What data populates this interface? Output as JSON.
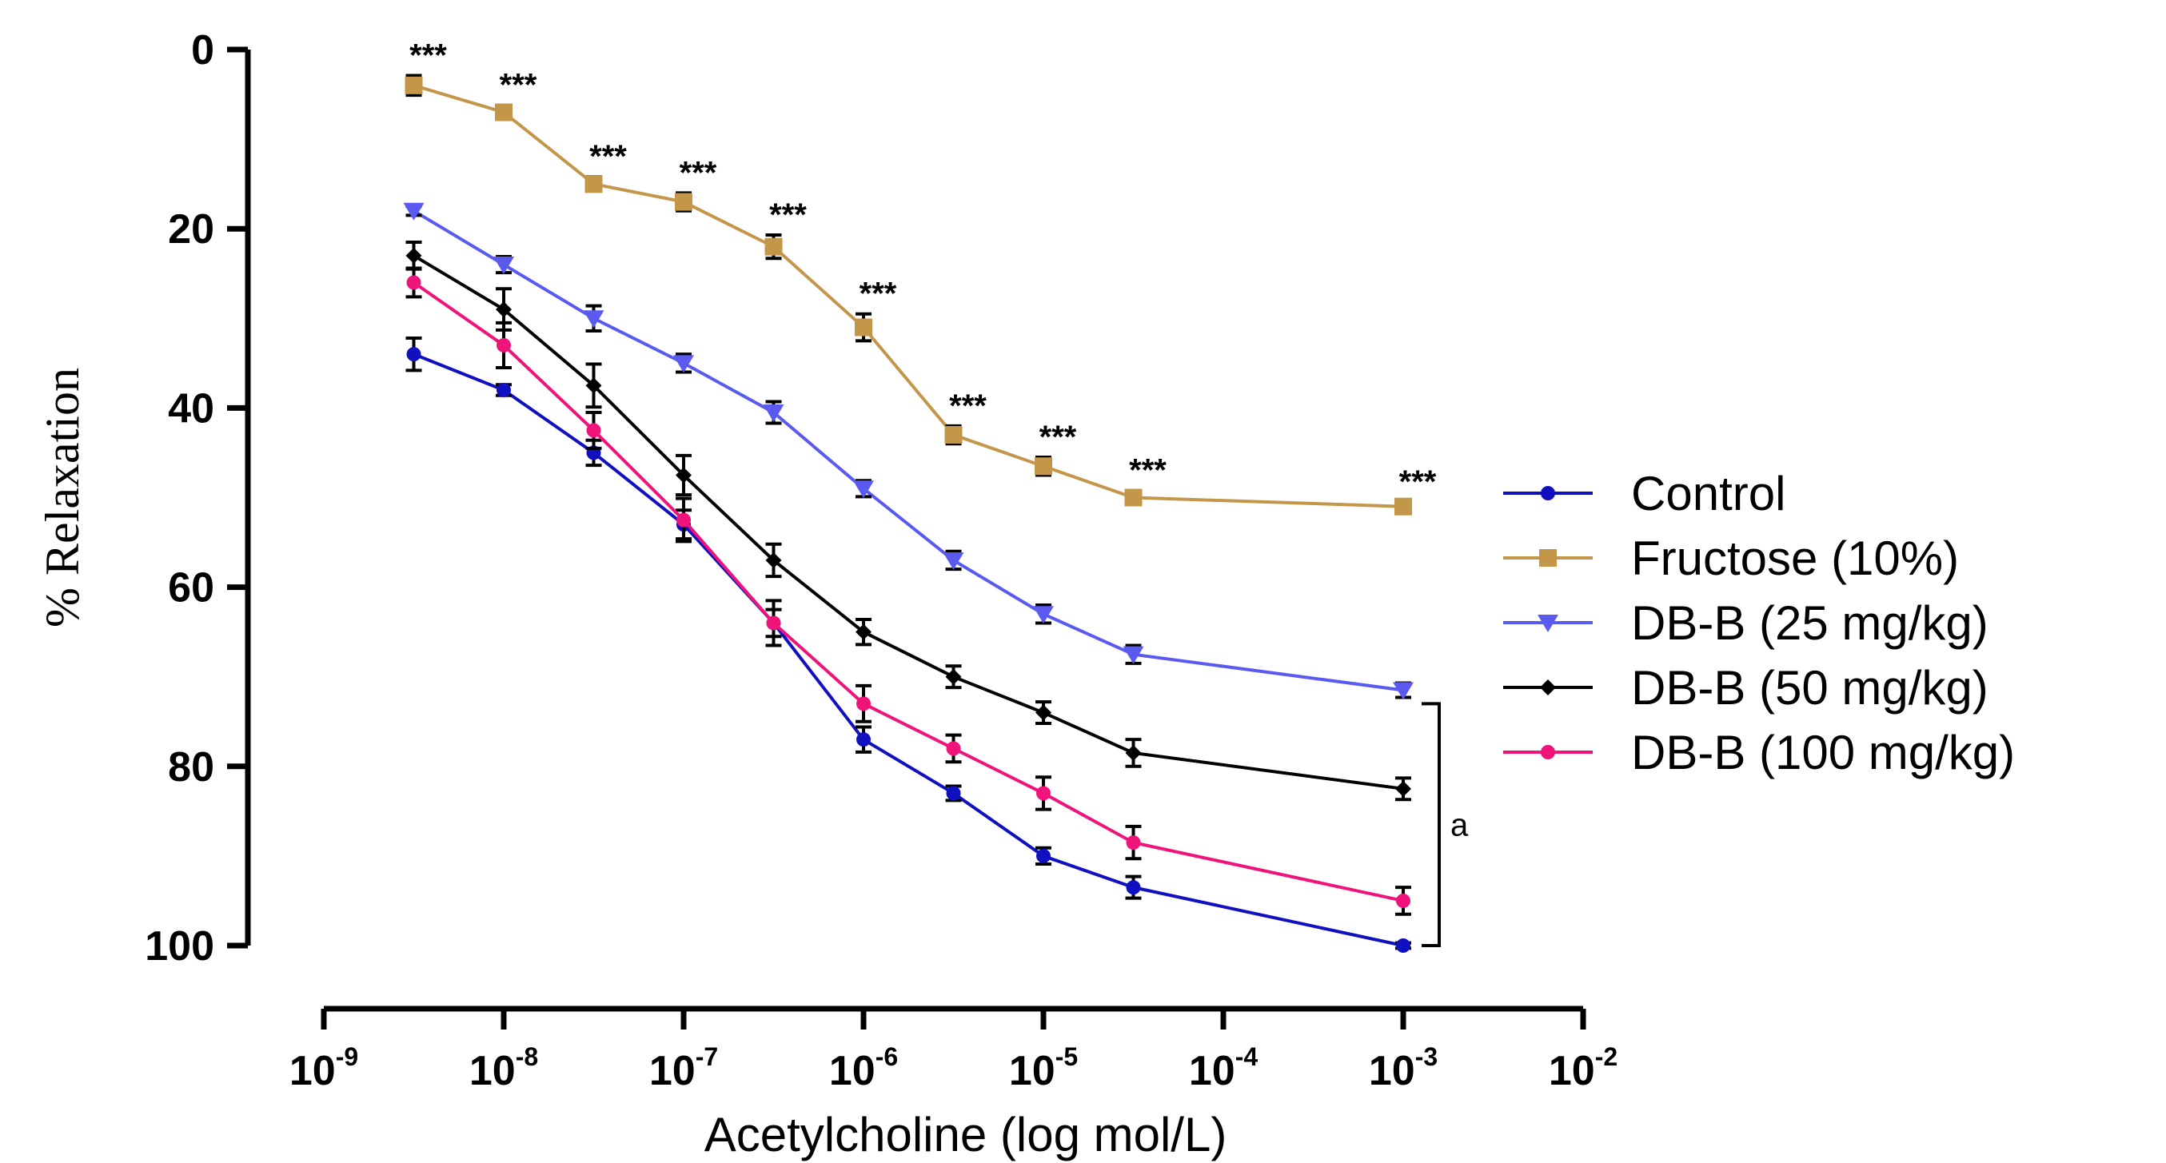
{
  "chart_data": {
    "type": "line",
    "title": "",
    "xlabel": "Acetylcholine (log mol/L)",
    "ylabel": "% Relaxation",
    "x_scale": "log",
    "x_range_exponent": [
      -9,
      -2
    ],
    "y_range": [
      0,
      100
    ],
    "y_inverted": true,
    "grid": false,
    "legend_position": "right",
    "y_ticks": [
      0,
      20,
      40,
      60,
      80,
      100
    ],
    "y_tick_labels": [
      "0",
      "20",
      "40",
      "60",
      "80",
      "100"
    ],
    "x_tick_exponents": [
      -9,
      -8,
      -7,
      -6,
      -5,
      -4,
      -3,
      -2
    ],
    "x_tick_base": "10",
    "x_tick_exponent_labels": [
      "-9",
      "-8",
      "-7",
      "-6",
      "-5",
      "-4",
      "-3",
      "-2"
    ],
    "x_exponents": [
      -8.5,
      -8,
      -7.5,
      -7,
      -6.5,
      -6,
      -5.5,
      -5,
      -4.5,
      -3
    ],
    "series": [
      {
        "name": "Control",
        "color": "#1010c0",
        "marker": "circle",
        "values": [
          34,
          38,
          45,
          53,
          64,
          77,
          83,
          90,
          93.5,
          100
        ],
        "errors": [
          1.8,
          0.6,
          1.4,
          1.6,
          1.5,
          1.4,
          0.8,
          0.9,
          1.2,
          0.3
        ]
      },
      {
        "name": "Fructose (10%)",
        "color": "#c4964a",
        "marker": "square",
        "values": [
          4,
          7,
          15,
          17,
          22,
          31,
          43,
          46.5,
          50,
          51
        ],
        "errors": [
          1.1,
          0.8,
          0.8,
          1.0,
          1.3,
          1.5,
          1.0,
          1.0,
          0.8,
          0.5
        ]
      },
      {
        "name": "DB-B (25 mg/kg)",
        "color": "#5a5af0",
        "marker": "triangle-down",
        "values": [
          18,
          24,
          30,
          35,
          40.5,
          49,
          57,
          63,
          67.5,
          71.5
        ],
        "errors": [
          0.5,
          0.9,
          1.4,
          1.0,
          1.2,
          0.9,
          1.0,
          1.0,
          1.0,
          0.8
        ]
      },
      {
        "name": "DB-B (50 mg/kg)",
        "color": "#000000",
        "marker": "diamond",
        "values": [
          23,
          29,
          37.5,
          47.5,
          57,
          65,
          70,
          74,
          78.5,
          82.5
        ],
        "errors": [
          1.5,
          2.3,
          2.4,
          2.2,
          1.8,
          1.4,
          1.2,
          1.2,
          1.5,
          1.2
        ]
      },
      {
        "name": "DB-B (100 mg/kg)",
        "color": "#f0147a",
        "marker": "circle",
        "values": [
          26,
          33,
          42.5,
          52.5,
          64,
          73,
          78,
          83,
          88.5,
          95
        ],
        "errors": [
          1.6,
          2.5,
          2.0,
          2.4,
          2.5,
          2.0,
          1.5,
          1.8,
          1.8,
          1.5
        ]
      }
    ],
    "annotations": [
      {
        "series": "Fructose (10%)",
        "text": "***",
        "applies_to": "all points"
      }
    ],
    "bracket": {
      "from_value": 73,
      "to_value": 100,
      "at_exponent": -3,
      "label": "a"
    }
  }
}
